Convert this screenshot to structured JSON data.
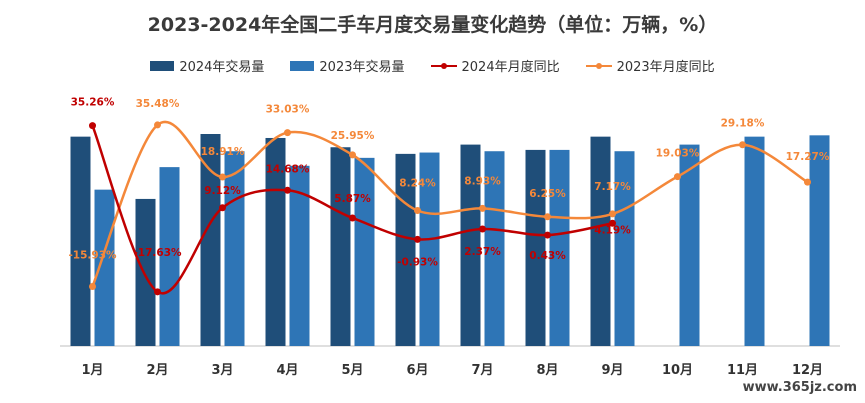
{
  "chart_data": {
    "type": "bar",
    "title": "2023-2024年全国二手车月度交易量变化趋势（单位：万辆，%）",
    "categories": [
      "1月",
      "2月",
      "3月",
      "4月",
      "5月",
      "6月",
      "7月",
      "8月",
      "9月",
      "10月",
      "11月",
      "12月"
    ],
    "series": [
      {
        "name": "2024年交易量",
        "type": "bar",
        "color": "#1f4e79",
        "values": [
          158,
          111,
          160,
          157,
          150,
          145,
          152,
          148,
          158,
          null,
          null,
          null
        ]
      },
      {
        "name": "2023年交易量",
        "type": "bar",
        "color": "#2e75b6",
        "values": [
          118,
          135,
          147,
          136,
          142,
          146,
          147,
          148,
          147,
          152,
          158,
          159
        ]
      },
      {
        "name": "2024年月度同比",
        "type": "line",
        "color": "#c00000",
        "values": [
          35.26,
          -17.63,
          9.12,
          14.68,
          5.87,
          -0.93,
          2.37,
          0.43,
          4.19,
          null,
          null,
          null
        ],
        "labels": [
          "35.26%",
          "-17.63%",
          "9.12%",
          "14.68%",
          "5.87%",
          "-0.93%",
          "2.37%",
          "0.43%",
          "4.19%",
          "",
          "",
          ""
        ]
      },
      {
        "name": "2023年月度同比",
        "type": "line",
        "color": "#f4883a",
        "values": [
          -15.93,
          35.48,
          18.91,
          33.03,
          25.95,
          8.24,
          8.93,
          6.25,
          7.17,
          19.03,
          29.18,
          17.27
        ],
        "labels": [
          "-15.93%",
          "35.48%",
          "18.91%",
          "33.03%",
          "25.95%",
          "8.24%",
          "8.93%",
          "6.25%",
          "7.17%",
          "19.03%",
          "29.18%",
          "17.27%"
        ]
      }
    ],
    "bar_axis_range": [
      0,
      200
    ],
    "pct_axis_range": [
      -25,
      45
    ],
    "legend_position": "top-center",
    "grid": false
  },
  "watermark": "www.365jz.com"
}
